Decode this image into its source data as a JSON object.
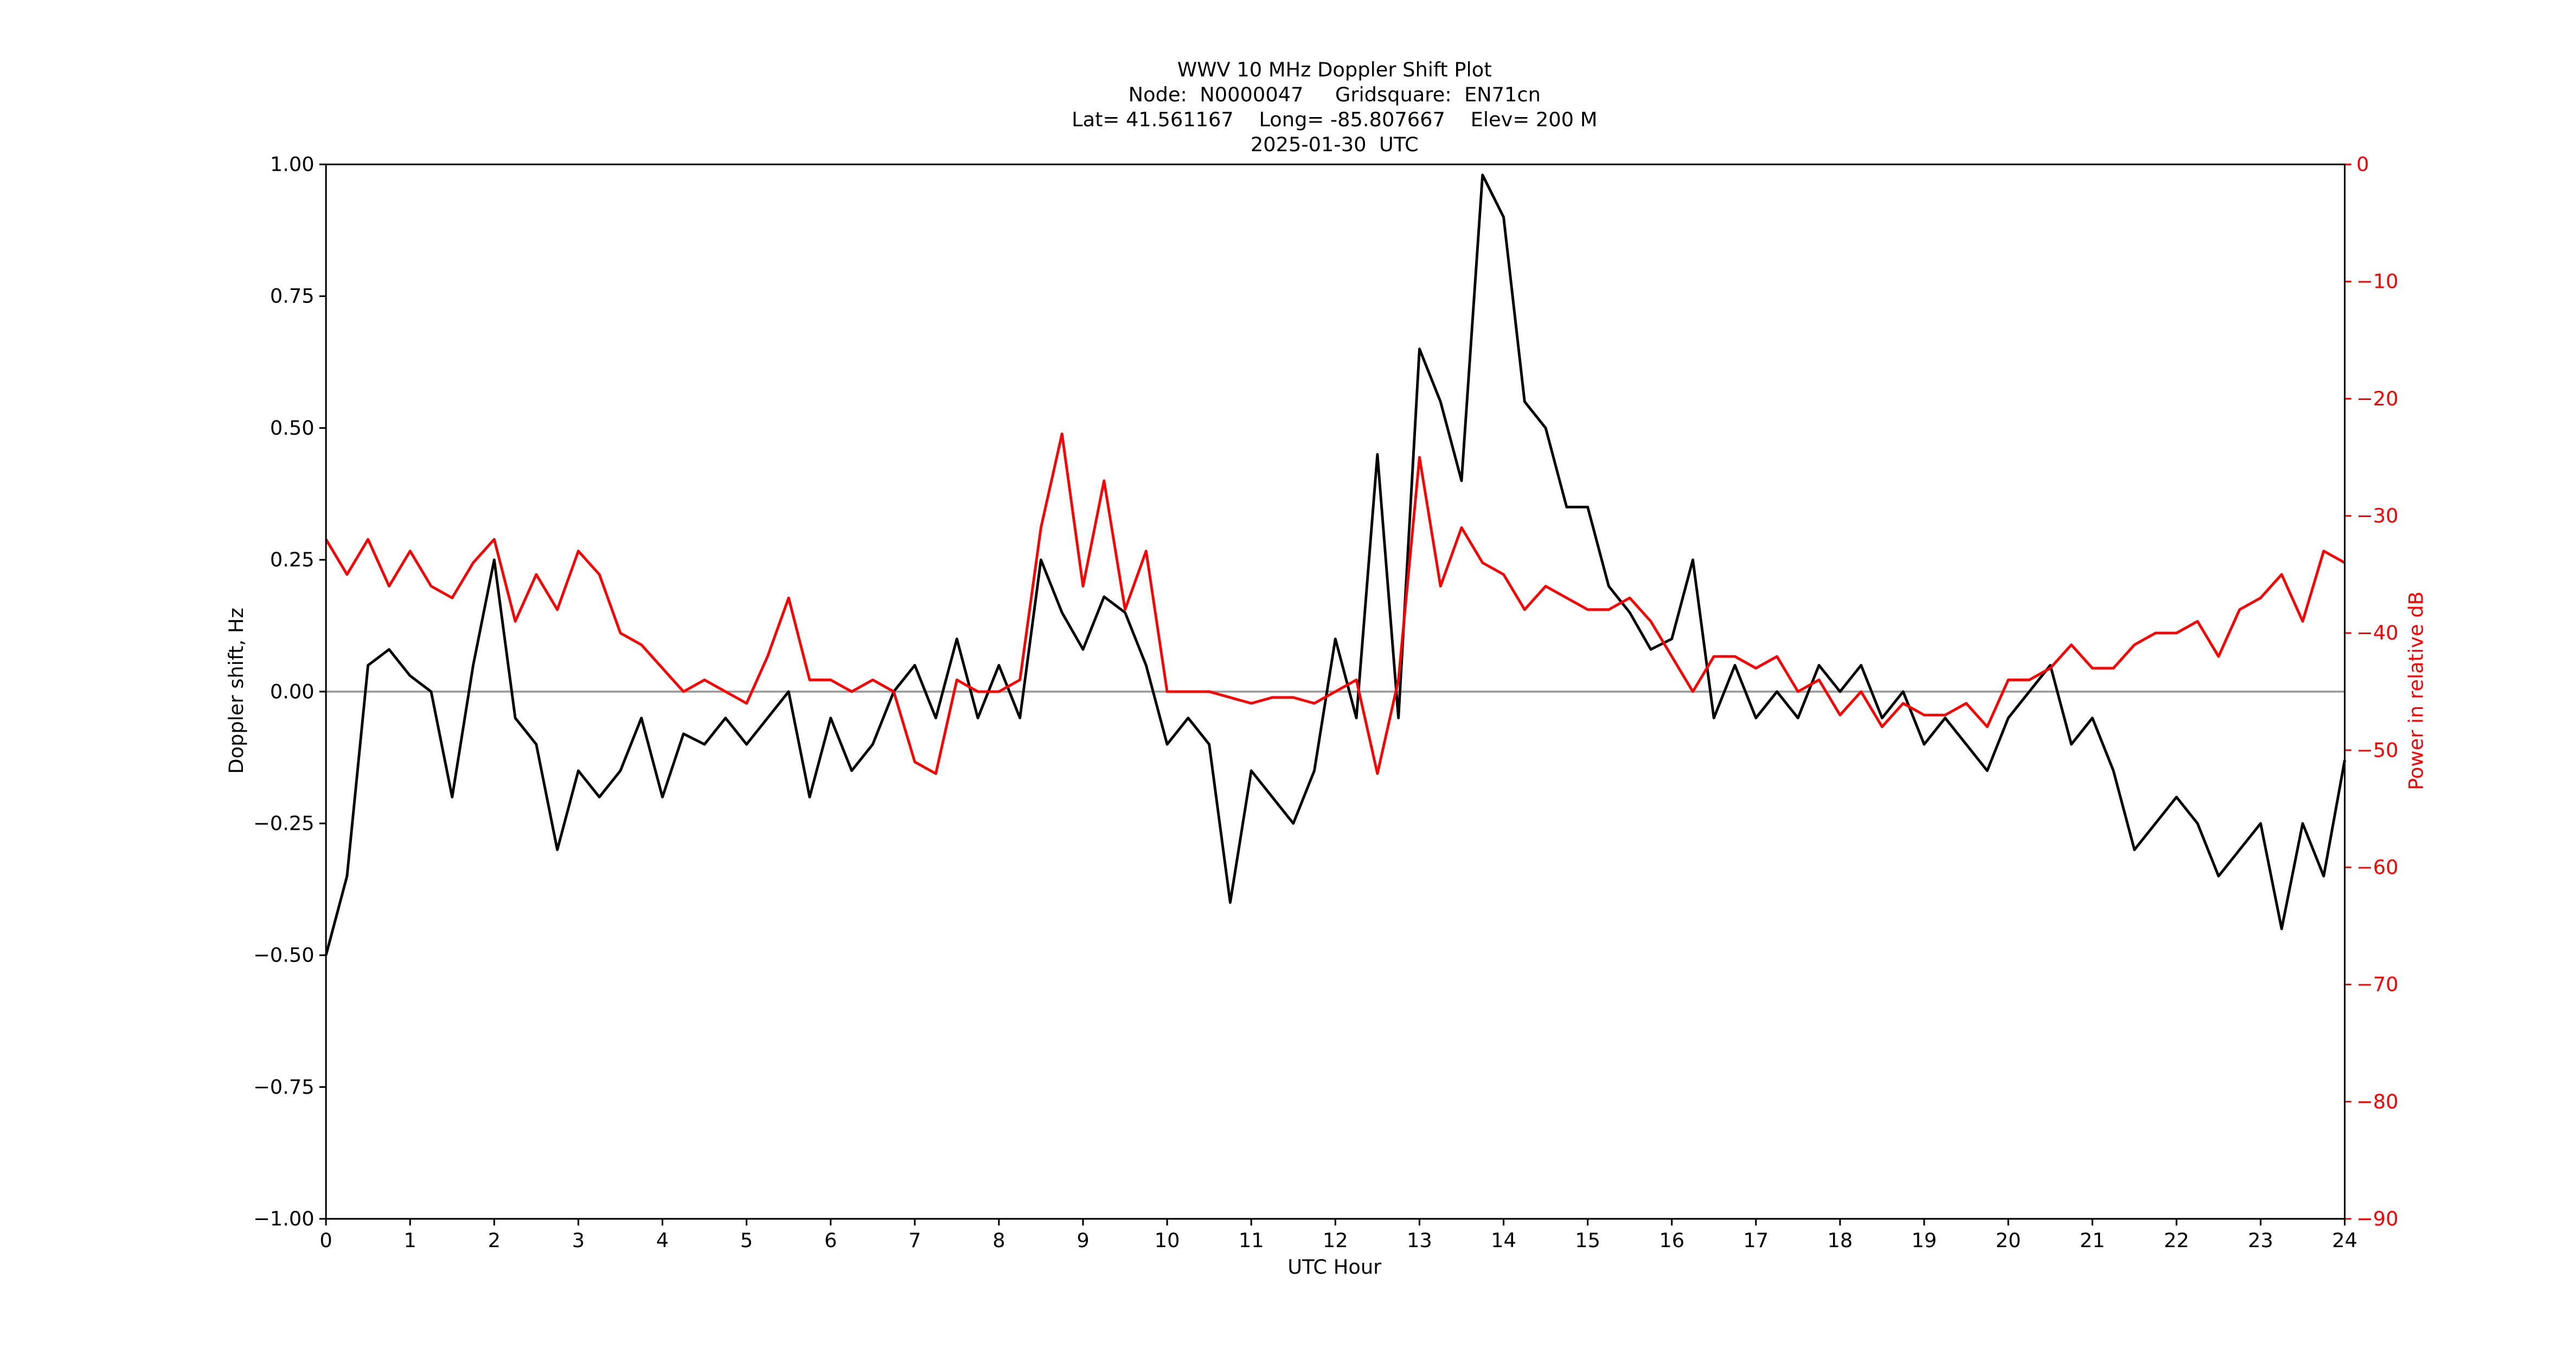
{
  "chart_data": {
    "type": "line",
    "title": [
      "WWV 10 MHz Doppler Shift Plot",
      "Node:  N0000047     Gridsquare:  EN71cn",
      "Lat= 41.561167    Long= -85.807667    Elev= 200 M",
      "2025-01-30  UTC"
    ],
    "xlabel": "UTC Hour",
    "ylabel": "Doppler shift, Hz",
    "y2label": "Power in relative dB",
    "x": [
      0,
      0.25,
      0.5,
      0.75,
      1,
      1.25,
      1.5,
      1.75,
      2,
      2.25,
      2.5,
      2.75,
      3,
      3.25,
      3.5,
      3.75,
      4,
      4.25,
      4.5,
      4.75,
      5,
      5.25,
      5.5,
      5.75,
      6,
      6.25,
      6.5,
      6.75,
      7,
      7.25,
      7.5,
      7.75,
      8,
      8.25,
      8.5,
      8.75,
      9,
      9.25,
      9.5,
      9.75,
      10,
      10.25,
      10.5,
      10.75,
      11,
      11.25,
      11.5,
      11.75,
      12,
      12.25,
      12.5,
      12.75,
      13,
      13.25,
      13.5,
      13.75,
      14,
      14.25,
      14.5,
      14.75,
      15,
      15.25,
      15.5,
      15.75,
      16,
      16.25,
      16.5,
      16.75,
      17,
      17.25,
      17.5,
      17.75,
      18,
      18.25,
      18.5,
      18.75,
      19,
      19.25,
      19.5,
      19.75,
      20,
      20.25,
      20.5,
      20.75,
      21,
      21.25,
      21.5,
      21.75,
      22,
      22.25,
      22.5,
      22.75,
      23,
      23.25,
      23.5,
      23.75,
      24
    ],
    "series": [
      {
        "color": "#000000",
        "values": [
          -0.5,
          -0.35,
          0.05,
          0.08,
          0.03,
          0,
          -0.2,
          0.05,
          0.25,
          -0.05,
          -0.1,
          -0.3,
          -0.15,
          -0.2,
          -0.15,
          -0.05,
          -0.2,
          -0.08,
          -0.1,
          -0.05,
          -0.1,
          -0.05,
          0,
          -0.2,
          -0.05,
          -0.15,
          -0.1,
          0,
          0.05,
          -0.05,
          0.1,
          -0.05,
          0.05,
          -0.05,
          0.25,
          0.15,
          0.08,
          0.18,
          0.15,
          0.05,
          -0.1,
          -0.05,
          -0.1,
          -0.4,
          -0.15,
          -0.2,
          -0.25,
          -0.15,
          0.1,
          -0.05,
          0.45,
          -0.05,
          0.65,
          0.55,
          0.4,
          0.98,
          0.9,
          0.55,
          0.5,
          0.35,
          0.35,
          0.2,
          0.15,
          0.08,
          0.1,
          0.25,
          -0.05,
          0.05,
          -0.05,
          0,
          -0.05,
          0.05,
          0,
          0.05,
          -0.05,
          0,
          -0.1,
          -0.05,
          -0.1,
          -0.15,
          -0.05,
          0,
          0.05,
          -0.1,
          -0.05,
          -0.15,
          -0.3,
          -0.25,
          -0.2,
          -0.25,
          -0.35,
          -0.3,
          -0.25,
          -0.45,
          -0.25,
          -0.35,
          -0.13
        ]
      },
      {
        "color": "#ff0000",
        "axis": "y2",
        "values": [
          -32,
          -35,
          -32,
          -36,
          -33,
          -36,
          -37,
          -34,
          -32,
          -39,
          -35,
          -38,
          -33,
          -35,
          -40,
          -41,
          -43,
          -45,
          -44,
          -45,
          -46,
          -42,
          -37,
          -44,
          -44,
          -45,
          -44,
          -45,
          -51,
          -52,
          -44,
          -45,
          -45,
          -44,
          -31,
          -23,
          -36,
          -27,
          -38,
          -33,
          -45,
          -45,
          -45,
          -45.5,
          -46,
          -45.5,
          -45.5,
          -46,
          -45,
          -44,
          -52,
          -44,
          -25,
          -36,
          -31,
          -34,
          -35,
          -38,
          -36,
          -37,
          -38,
          -38,
          -37,
          -39,
          -42,
          -45,
          -42,
          -42,
          -43,
          -42,
          -45,
          -44,
          -47,
          -45,
          -48,
          -46,
          -47,
          -47,
          -46,
          -48,
          -44,
          -44,
          -43,
          -41,
          -43,
          -43,
          -41,
          -40,
          -40,
          -39,
          -42,
          -38,
          -37,
          -35,
          -39,
          -33,
          -34
        ]
      }
    ],
    "hline": 0,
    "hline_color": "#999999",
    "y2color": "#ff0000",
    "xlim": [
      0,
      24
    ],
    "xticks": [
      0,
      1,
      2,
      3,
      4,
      5,
      6,
      7,
      8,
      9,
      10,
      11,
      12,
      13,
      14,
      15,
      16,
      17,
      18,
      19,
      20,
      21,
      22,
      23,
      24
    ],
    "ylim": [
      -1,
      1
    ],
    "yticks": [
      {
        "value": -1,
        "label": "−1.00"
      },
      {
        "value": -0.75,
        "label": "−0.75"
      },
      {
        "value": -0.5,
        "label": "−0.50"
      },
      {
        "value": -0.25,
        "label": "−0.25"
      },
      {
        "value": 0,
        "label": "0.00"
      },
      {
        "value": 0.25,
        "label": "0.25"
      },
      {
        "value": 0.5,
        "label": "0.50"
      },
      {
        "value": 0.75,
        "label": "0.75"
      },
      {
        "value": 1,
        "label": "1.00"
      }
    ],
    "y2lim": [
      -90,
      0
    ],
    "y2ticks": [
      {
        "value": -90,
        "label": "−90"
      },
      {
        "value": -80,
        "label": "−80"
      },
      {
        "value": -70,
        "label": "−70"
      },
      {
        "value": -60,
        "label": "−60"
      },
      {
        "value": -50,
        "label": "−50"
      },
      {
        "value": -40,
        "label": "−40"
      },
      {
        "value": -30,
        "label": "−30"
      },
      {
        "value": -20,
        "label": "−20"
      },
      {
        "value": -10,
        "label": "−10"
      },
      0
    ]
  }
}
